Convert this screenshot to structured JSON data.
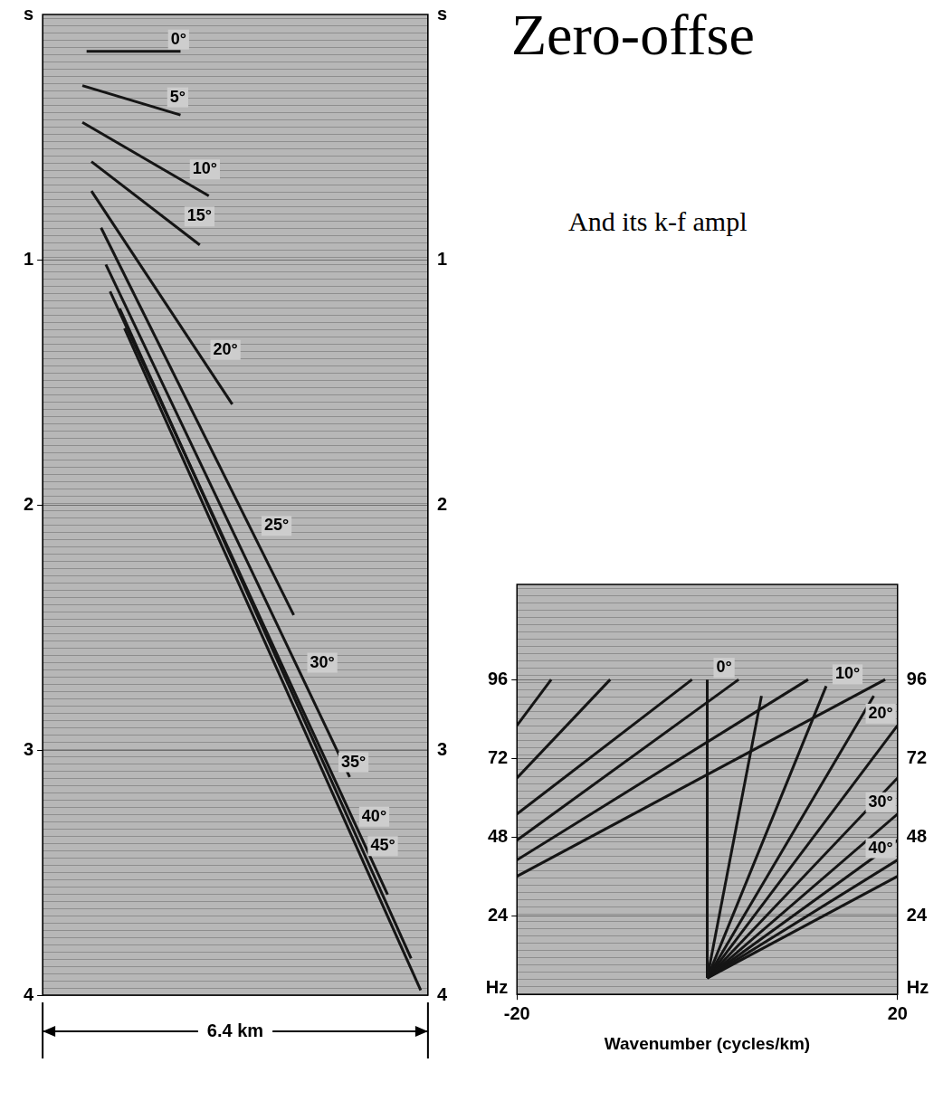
{
  "title": "Zero-offse",
  "subtitle": "And its k-f ampl",
  "chart_data": [
    {
      "type": "line",
      "x_label": "6.4 km",
      "y_label": "s",
      "xlim": [
        0,
        6.4
      ],
      "xticks": [],
      "ylim": [
        4,
        0
      ],
      "yticks": [
        1,
        2,
        3,
        4
      ],
      "tick_labels": "y",
      "grid": true,
      "color": "#151515",
      "series": [
        {
          "name": "0°",
          "x": [
            0.73,
            2.29
          ],
          "values": [
            0.15,
            0.15
          ]
        },
        {
          "name": "5°",
          "x": [
            0.66,
            2.29
          ],
          "values": [
            0.29,
            0.41
          ]
        },
        {
          "name": "10°",
          "x": [
            0.66,
            2.76
          ],
          "values": [
            0.44,
            0.74
          ]
        },
        {
          "name": "15°",
          "x": [
            0.81,
            2.61
          ],
          "values": [
            0.6,
            0.94
          ]
        },
        {
          "name": "20°",
          "x": [
            0.81,
            3.15
          ],
          "values": [
            0.72,
            1.59
          ]
        },
        {
          "name": "25°",
          "x": [
            0.97,
            4.17
          ],
          "values": [
            0.87,
            2.45
          ]
        },
        {
          "name": "30°",
          "x": [
            1.05,
            5.1
          ],
          "values": [
            1.02,
            3.11
          ]
        },
        {
          "name": "35°",
          "x": [
            1.12,
            5.73
          ],
          "values": [
            1.13,
            3.59
          ]
        },
        {
          "name": "40°",
          "x": [
            1.28,
            6.12
          ],
          "values": [
            1.2,
            3.85
          ]
        },
        {
          "name": "45°",
          "x": [
            1.36,
            6.28
          ],
          "values": [
            1.28,
            3.98
          ]
        }
      ]
    },
    {
      "type": "line",
      "x_label": "Wavenumber (cycles/km)",
      "y_label": "Hz",
      "xlim": [
        -20,
        20
      ],
      "xticks": [
        -20,
        20
      ],
      "ylim": [
        0,
        125
      ],
      "yticks": [
        24,
        48,
        72,
        96
      ],
      "grid": true,
      "color": "#151515",
      "series": [
        {
          "name": "0°",
          "x": [
            0,
            0
          ],
          "values": [
            5,
            96
          ]
        },
        {
          "x": [
            0,
            5.7
          ],
          "values": [
            5,
            91
          ]
        },
        {
          "name": "10°",
          "x": [
            0,
            12.5
          ],
          "values": [
            5,
            94
          ]
        },
        {
          "x": [
            0,
            17.5
          ],
          "values": [
            5,
            91
          ]
        },
        {
          "name": "20°",
          "x": [
            0,
            20
          ],
          "values": [
            5,
            82
          ]
        },
        {
          "x": [
            0,
            20
          ],
          "values": [
            5,
            66
          ]
        },
        {
          "name": "30°",
          "x": [
            0,
            20
          ],
          "values": [
            5,
            55
          ]
        },
        {
          "x": [
            0,
            20
          ],
          "values": [
            5,
            47
          ]
        },
        {
          "name": "40°",
          "x": [
            0,
            20
          ],
          "values": [
            5,
            41
          ]
        },
        {
          "x": [
            0,
            20
          ],
          "values": [
            5,
            36
          ]
        },
        {
          "x": [
            -20,
            -16.4
          ],
          "values": [
            82,
            96
          ]
        },
        {
          "x": [
            -20,
            -10.2
          ],
          "values": [
            66,
            96
          ]
        },
        {
          "x": [
            -20,
            -1.6
          ],
          "values": [
            55,
            96
          ]
        },
        {
          "x": [
            -20,
            3.3
          ],
          "values": [
            47,
            96
          ]
        },
        {
          "x": [
            -20,
            10.6
          ],
          "values": [
            41,
            96
          ]
        },
        {
          "x": [
            -20,
            18.7
          ],
          "values": [
            36,
            96
          ]
        }
      ]
    }
  ]
}
